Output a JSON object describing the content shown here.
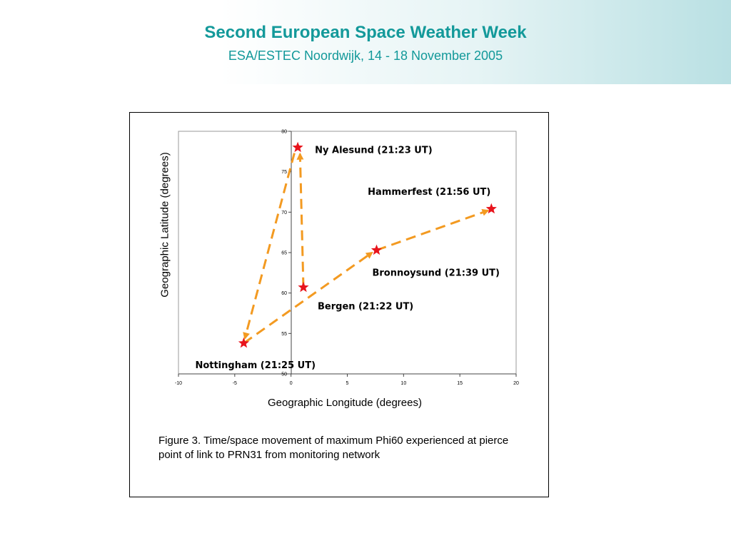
{
  "header": {
    "title": "Second European Space Weather Week",
    "subtitle": "ESA/ESTEC Noordwijk, 14 - 18 November 2005"
  },
  "figure": {
    "caption": "Figure 3. Time/space movement of maximum Phi60 experienced at pierce point of link to PRN31 from monitoring network"
  },
  "colors": {
    "marker": "#e8141c",
    "arrow": "#f39a21",
    "accent": "#13999a"
  },
  "chart_data": {
    "type": "scatter",
    "xlabel": "Geographic Longitude (degrees)",
    "ylabel": "Geographic Latitude (degrees)",
    "xlim": [
      -10,
      20
    ],
    "ylim": [
      50,
      80
    ],
    "xticks": [
      -10,
      -5,
      0,
      5,
      10,
      15,
      20
    ],
    "yticks": [
      50,
      55,
      60,
      65,
      70,
      75,
      80
    ],
    "grid": false,
    "points": [
      {
        "label": "Ny Alesund (21:23 UT)",
        "x": 0.6,
        "y": 78.0
      },
      {
        "label": "Hammerfest (21:56 UT)",
        "x": 17.8,
        "y": 70.4
      },
      {
        "label": "Bronnoysund (21:39 UT)",
        "x": 7.6,
        "y": 65.3
      },
      {
        "label": "Bergen (21:22 UT)",
        "x": 1.1,
        "y": 60.7
      },
      {
        "label": "Nottingham (21:25 UT)",
        "x": -4.2,
        "y": 53.8
      }
    ],
    "arrows": [
      {
        "from": [
          -4.2,
          53.8
        ],
        "to": [
          7.2,
          65.0
        ]
      },
      {
        "from": [
          7.6,
          65.3
        ],
        "to": [
          17.5,
          70.2
        ]
      },
      {
        "from": [
          1.1,
          60.7
        ],
        "to": [
          0.8,
          77.2
        ]
      },
      {
        "from": [
          0.3,
          77.3
        ],
        "to": [
          -4.1,
          54.4
        ]
      }
    ]
  }
}
